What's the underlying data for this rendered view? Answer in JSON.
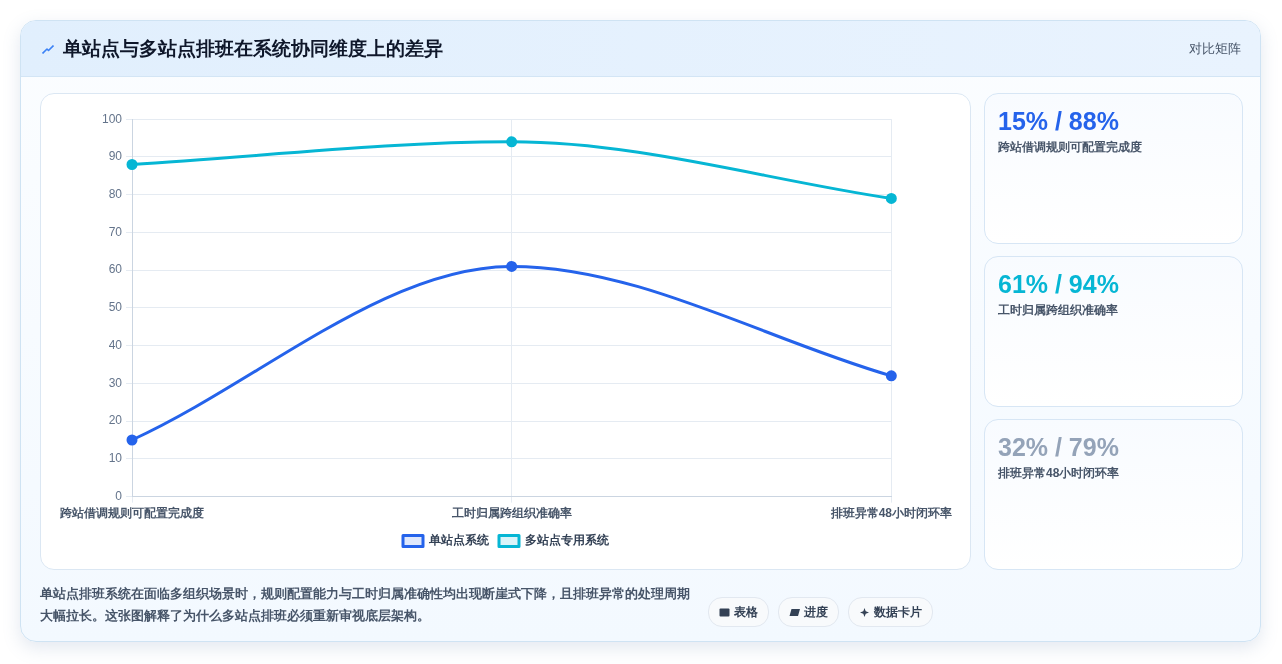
{
  "chart_data": {
    "type": "line",
    "title": "单站点与多站点排班在系统协同维度上的差异",
    "categories": [
      "跨站借调规则可配置完成度",
      "工时归属跨组织准确率",
      "排班异常48小时闭环率"
    ],
    "series": [
      {
        "name": "单站点系统",
        "color": "#2563eb",
        "values": [
          15,
          61,
          32
        ]
      },
      {
        "name": "多站点专用系统",
        "color": "#06b6d4",
        "values": [
          88,
          94,
          79
        ]
      }
    ],
    "ylim": [
      0,
      100
    ],
    "yticks": [
      0,
      10,
      20,
      30,
      40,
      50,
      60,
      70,
      80,
      90,
      100
    ],
    "grid": true,
    "legend": "bottom",
    "marker": "circle",
    "annotations": [
      "对比矩阵",
      "15% / 88%",
      "61% / 94%",
      "32% / 79%",
      "单站点排班系统在面临多组织场景时，规则配置能力与工时归属准确性均出现断崖式下降，且排班异常的处理周期大幅拉长。这张图解释了为什么多站点排班必须重新审视底层架构。",
      "表格",
      "进度",
      "数据卡片"
    ]
  }
}
